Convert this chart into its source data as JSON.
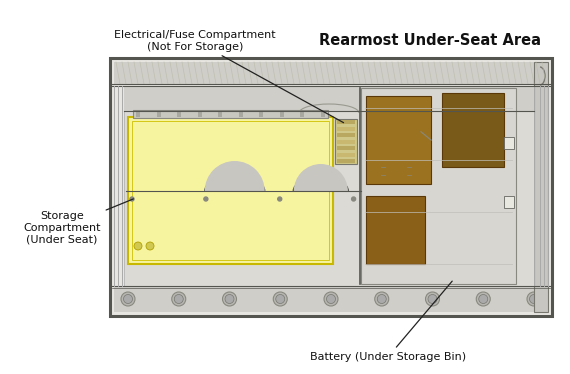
{
  "fig_width": 5.7,
  "fig_height": 3.74,
  "dpi": 100,
  "bg_color": "#ffffff",
  "title_bold": "Rearmost Under-Seat Area",
  "title_fontsize": 10.5,
  "label_electrical": "Electrical/Fuse Compartment\n(Not For Storage)",
  "label_storage": "Storage\nCompartment\n(Under Seat)",
  "label_battery": "Battery (Under Storage Bin)",
  "label_fontsize": 8.0,
  "yellow_fill": "#f7f4a0",
  "brown_fill": "#9B7320",
  "brown2": "#7a5a18",
  "arrow_color": "#222222",
  "frame_bg": "#e8e6e0",
  "frame_top": "#d0cec8",
  "frame_mid": "#c8c6c0",
  "chassis_inner": "#dcdad4",
  "right_panel_bg": "#d8d6d0",
  "bolt_color": "#b8b6b0",
  "line_color": "#888880",
  "dark_line": "#555550"
}
